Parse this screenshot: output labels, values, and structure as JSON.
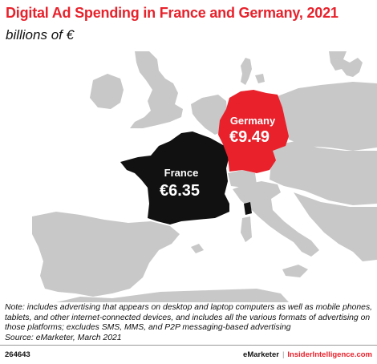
{
  "header": {
    "title": "Digital Ad Spending in France and Germany, 2021",
    "subtitle": "billions of €"
  },
  "colors": {
    "title": "#e8212b",
    "germany": "#e8212b",
    "france": "#111111",
    "other_countries": "#c8c8c8",
    "sea": "#ffffff"
  },
  "map": {
    "regions": [
      {
        "country": "France",
        "label": "France",
        "value_label": "€6.35",
        "value": 6.35,
        "color": "#111111"
      },
      {
        "country": "Germany",
        "label": "Germany",
        "value_label": "€9.49",
        "value": 9.49,
        "color": "#e8212b"
      }
    ]
  },
  "footnote": {
    "note": "Note: includes advertising that appears on desktop and laptop computers as well as mobile phones, tablets, and other internet-connected devices, and includes all the various formats of advertising on those platforms; excludes SMS, MMS, and P2P messaging-based advertising",
    "source": "Source: eMarketer, March 2021"
  },
  "footer": {
    "chart_id": "264643",
    "brand": "eMarketer",
    "site": "InsiderIntelligence.com"
  }
}
